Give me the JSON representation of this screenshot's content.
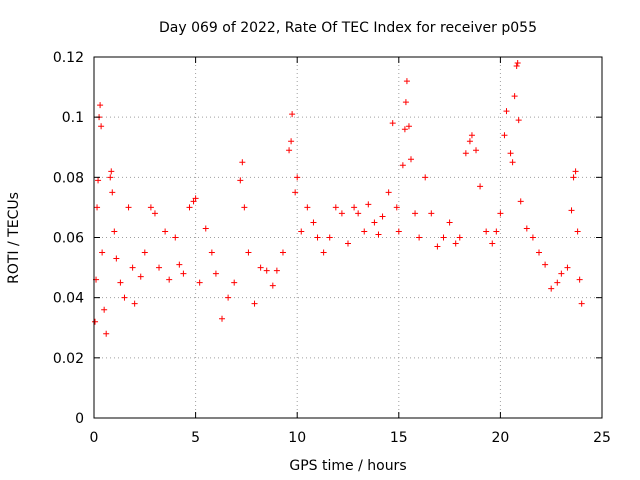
{
  "chart_data": {
    "type": "scatter",
    "title": "Day 069 of 2022, Rate Of TEC Index for receiver p055",
    "xlabel": "GPS time / hours",
    "ylabel": "ROTI / TECUs",
    "xlim": [
      0,
      25
    ],
    "ylim": [
      0,
      0.12
    ],
    "xticks": [
      0,
      5,
      10,
      15,
      20,
      25
    ],
    "xtick_labels": [
      "0",
      "5",
      "10",
      "15",
      "20",
      "25"
    ],
    "yticks": [
      0,
      0.02,
      0.04,
      0.06,
      0.08,
      0.1,
      0.12
    ],
    "ytick_labels": [
      "0",
      "0.02",
      "0.04",
      "0.06",
      "0.08",
      "0.1",
      "0.12"
    ],
    "grid": true,
    "marker": "+",
    "color": "#ff0000",
    "series": [
      {
        "points": [
          [
            0.05,
            0.032
          ],
          [
            0.1,
            0.046
          ],
          [
            0.15,
            0.07
          ],
          [
            0.2,
            0.079
          ],
          [
            0.25,
            0.1
          ],
          [
            0.3,
            0.104
          ],
          [
            0.35,
            0.097
          ],
          [
            0.4,
            0.055
          ],
          [
            0.5,
            0.036
          ],
          [
            0.6,
            0.028
          ],
          [
            0.8,
            0.08
          ],
          [
            0.85,
            0.082
          ],
          [
            0.9,
            0.075
          ],
          [
            1.0,
            0.062
          ],
          [
            1.1,
            0.053
          ],
          [
            1.3,
            0.045
          ],
          [
            1.5,
            0.04
          ],
          [
            1.7,
            0.07
          ],
          [
            1.9,
            0.05
          ],
          [
            2.0,
            0.038
          ],
          [
            2.3,
            0.047
          ],
          [
            2.5,
            0.055
          ],
          [
            2.8,
            0.07
          ],
          [
            3.0,
            0.068
          ],
          [
            3.2,
            0.05
          ],
          [
            3.5,
            0.062
          ],
          [
            3.7,
            0.046
          ],
          [
            4.0,
            0.06
          ],
          [
            4.2,
            0.051
          ],
          [
            4.4,
            0.048
          ],
          [
            4.7,
            0.07
          ],
          [
            4.9,
            0.072
          ],
          [
            5.0,
            0.073
          ],
          [
            5.2,
            0.045
          ],
          [
            5.5,
            0.063
          ],
          [
            5.8,
            0.055
          ],
          [
            6.0,
            0.048
          ],
          [
            6.3,
            0.033
          ],
          [
            6.6,
            0.04
          ],
          [
            6.9,
            0.045
          ],
          [
            7.2,
            0.079
          ],
          [
            7.3,
            0.085
          ],
          [
            7.4,
            0.07
          ],
          [
            7.6,
            0.055
          ],
          [
            7.9,
            0.038
          ],
          [
            8.2,
            0.05
          ],
          [
            8.5,
            0.049
          ],
          [
            8.8,
            0.044
          ],
          [
            9.0,
            0.049
          ],
          [
            9.3,
            0.055
          ],
          [
            9.6,
            0.089
          ],
          [
            9.7,
            0.092
          ],
          [
            9.75,
            0.101
          ],
          [
            9.9,
            0.075
          ],
          [
            10.0,
            0.08
          ],
          [
            10.2,
            0.062
          ],
          [
            10.5,
            0.07
          ],
          [
            10.8,
            0.065
          ],
          [
            11.0,
            0.06
          ],
          [
            11.3,
            0.055
          ],
          [
            11.6,
            0.06
          ],
          [
            11.9,
            0.07
          ],
          [
            12.2,
            0.068
          ],
          [
            12.5,
            0.058
          ],
          [
            12.8,
            0.07
          ],
          [
            13.0,
            0.068
          ],
          [
            13.3,
            0.062
          ],
          [
            13.5,
            0.071
          ],
          [
            13.8,
            0.065
          ],
          [
            14.0,
            0.061
          ],
          [
            14.2,
            0.067
          ],
          [
            14.5,
            0.075
          ],
          [
            14.7,
            0.098
          ],
          [
            14.9,
            0.07
          ],
          [
            15.0,
            0.062
          ],
          [
            15.2,
            0.084
          ],
          [
            15.3,
            0.096
          ],
          [
            15.35,
            0.105
          ],
          [
            15.4,
            0.112
          ],
          [
            15.5,
            0.097
          ],
          [
            15.6,
            0.086
          ],
          [
            15.8,
            0.068
          ],
          [
            16.0,
            0.06
          ],
          [
            16.3,
            0.08
          ],
          [
            16.6,
            0.068
          ],
          [
            16.9,
            0.057
          ],
          [
            17.2,
            0.06
          ],
          [
            17.5,
            0.065
          ],
          [
            17.8,
            0.058
          ],
          [
            18.0,
            0.06
          ],
          [
            18.3,
            0.088
          ],
          [
            18.5,
            0.092
          ],
          [
            18.6,
            0.094
          ],
          [
            18.8,
            0.089
          ],
          [
            19.0,
            0.077
          ],
          [
            19.3,
            0.062
          ],
          [
            19.6,
            0.058
          ],
          [
            19.8,
            0.062
          ],
          [
            20.0,
            0.068
          ],
          [
            20.2,
            0.094
          ],
          [
            20.3,
            0.102
          ],
          [
            20.5,
            0.088
          ],
          [
            20.6,
            0.085
          ],
          [
            20.7,
            0.107
          ],
          [
            20.8,
            0.117
          ],
          [
            20.85,
            0.118
          ],
          [
            20.9,
            0.099
          ],
          [
            21.0,
            0.072
          ],
          [
            21.3,
            0.063
          ],
          [
            21.6,
            0.06
          ],
          [
            21.9,
            0.055
          ],
          [
            22.2,
            0.051
          ],
          [
            22.5,
            0.043
          ],
          [
            22.8,
            0.045
          ],
          [
            23.0,
            0.048
          ],
          [
            23.3,
            0.05
          ],
          [
            23.5,
            0.069
          ],
          [
            23.6,
            0.08
          ],
          [
            23.7,
            0.082
          ],
          [
            23.8,
            0.062
          ],
          [
            23.9,
            0.046
          ],
          [
            24.0,
            0.038
          ]
        ]
      }
    ]
  }
}
